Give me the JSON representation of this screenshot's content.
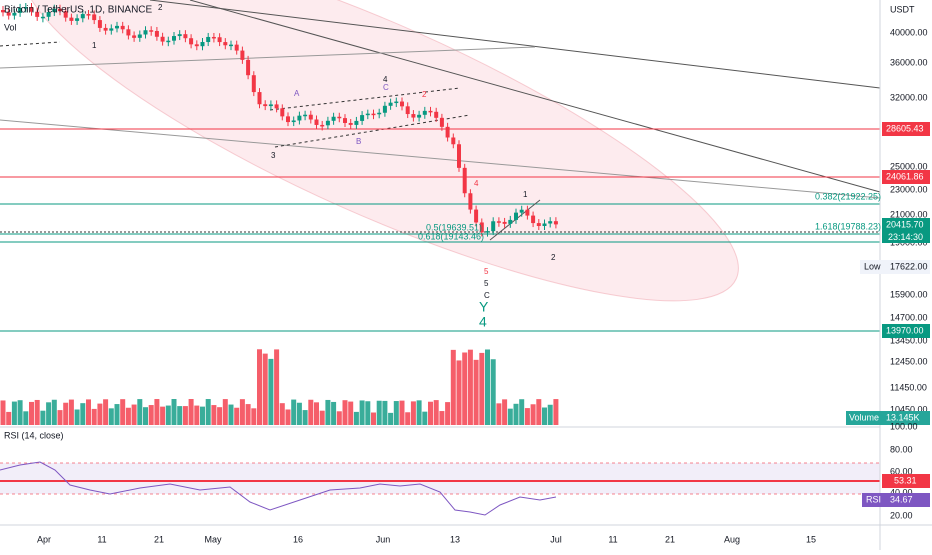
{
  "header": {
    "title": "Bitcoin / TetherUS, 1D, BINANCE",
    "volume_indicator": "Vol",
    "rsi_indicator": "RSI (14, close)"
  },
  "price_axis": {
    "unit": "USDT",
    "ticks": [
      "40000.00",
      "36000.00",
      "32000.00",
      "25000.00",
      "23000.00",
      "21000.00",
      "19000.00",
      "15900.00",
      "14700.00",
      "13450.00",
      "12450.00",
      "11450.00",
      "10450.00"
    ],
    "tags": [
      "28605.43",
      "24061.86",
      "20415.70",
      "13970.00"
    ],
    "countdown": "23:14:30",
    "low_label": "Low",
    "low_value": "17622.00",
    "volume_label": "Volume",
    "volume_value": "13.145K"
  },
  "rsi_axis": {
    "ticks": [
      "100.00",
      "80.00",
      "60.00",
      "40.00",
      "20.00"
    ],
    "value_tag": "53.31",
    "rsi_label": "RSI",
    "rsi_value": "34.67"
  },
  "time_axis": {
    "labels": [
      "Apr",
      "11",
      "21",
      "May",
      "16",
      "Jun",
      "13",
      "Jul",
      "11",
      "21",
      "Aug",
      "15"
    ]
  },
  "annotations": {
    "fib": [
      "0.382(21922.25)",
      "1.618(19788.23)",
      "0.5(19639.51)",
      "0.618(19143.46)"
    ],
    "waves": [
      "1",
      "2",
      "A",
      "B",
      "C",
      "3",
      "4",
      "2",
      "4",
      "5",
      "5",
      "C",
      "Y",
      "4",
      "1",
      "2"
    ]
  }
}
